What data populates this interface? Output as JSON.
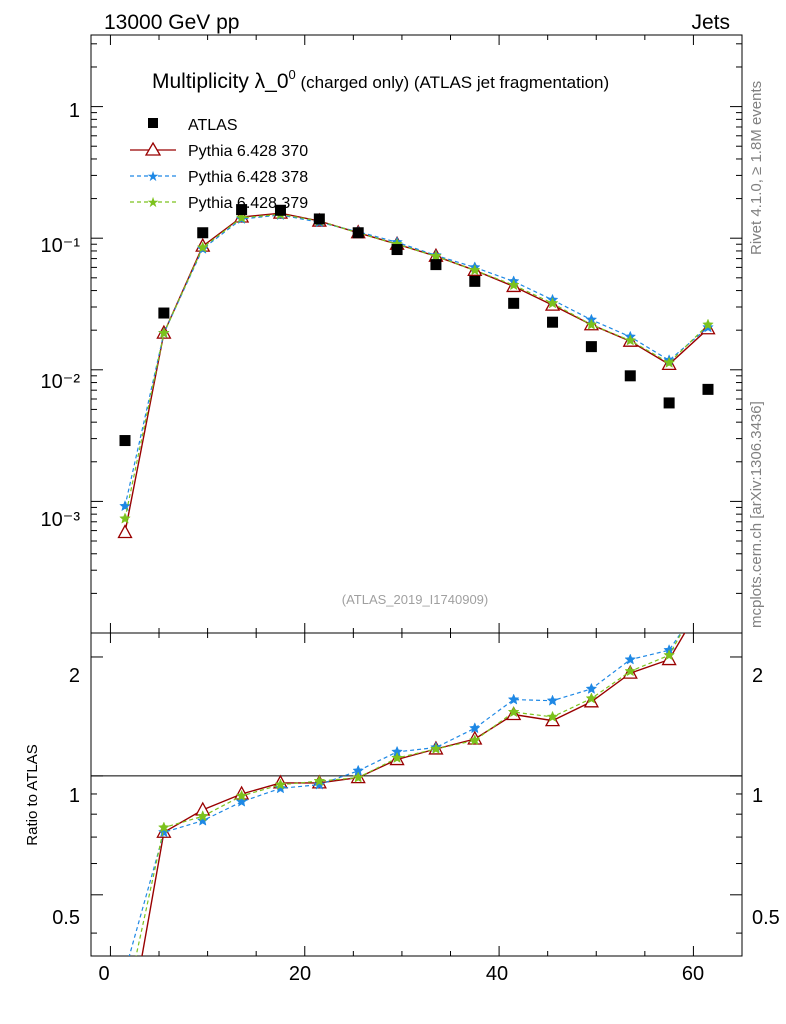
{
  "header": {
    "left": "13000 GeV pp",
    "right": "Jets"
  },
  "side_labels": {
    "rivet": "Rivet 4.1.0, ≥ 1.8M events",
    "mcplots": "mcplots.cern.ch [arXiv:1306.3436]"
  },
  "colors": {
    "atlas": "#000000",
    "p370": "#990000",
    "p378": "#1e88e5",
    "p379": "#7cc21d"
  },
  "chart_data": [
    {
      "type": "scatter",
      "title": "Multiplicity λ_0⁰ (charged only) (ATLAS jet fragmentation)",
      "title_main": "Multiplicity λ_0",
      "title_sup": "0",
      "title_rest": " (charged only) (ATLAS jet fragmentation)",
      "analysis": "(ATLAS_2019_I1740909)",
      "xlim": [
        -2,
        65
      ],
      "ylim": [
        0.0001,
        3.5
      ],
      "yscale": "log",
      "ytick_labels": [
        "10⁻³",
        "10⁻²",
        "10⁻¹",
        "1"
      ],
      "x": [
        1.5,
        5.5,
        9.5,
        13.5,
        17.5,
        21.5,
        25.5,
        29.5,
        33.5,
        37.5,
        41.5,
        45.5,
        49.5,
        53.5,
        57.5,
        61.5
      ],
      "series": [
        {
          "name": "ATLAS",
          "marker": "square",
          "values": [
            0.0029,
            0.027,
            0.11,
            0.165,
            0.163,
            0.14,
            0.11,
            0.082,
            0.063,
            0.047,
            0.032,
            0.023,
            0.015,
            0.009,
            0.0056,
            0.0071
          ]
        },
        {
          "name": "Pythia 6.428 370",
          "marker": "triangle",
          "values": [
            0.00058,
            0.019,
            0.087,
            0.145,
            0.155,
            0.135,
            0.11,
            0.09,
            0.073,
            0.057,
            0.043,
            0.031,
            0.022,
            0.0165,
            0.011,
            0.0205
          ]
        },
        {
          "name": "Pythia 6.428 378",
          "marker": "star",
          "values": [
            0.00092,
            0.019,
            0.083,
            0.14,
            0.15,
            0.132,
            0.112,
            0.093,
            0.074,
            0.06,
            0.047,
            0.034,
            0.024,
            0.0178,
            0.0118,
            0.021
          ]
        },
        {
          "name": "Pythia 6.428 379",
          "marker": "star",
          "values": [
            0.00074,
            0.019,
            0.085,
            0.143,
            0.152,
            0.135,
            0.11,
            0.09,
            0.073,
            0.057,
            0.044,
            0.032,
            0.022,
            0.0167,
            0.0113,
            0.022
          ]
        }
      ]
    },
    {
      "type": "line",
      "ylabel": "Ratio to ATLAS",
      "xlim": [
        -2,
        65
      ],
      "ylim": [
        0.35,
        2.3
      ],
      "yscale": "log",
      "ytick_labels": [
        "0.5",
        "1",
        "2"
      ],
      "xtick_labels": [
        "0",
        "20",
        "40",
        "60"
      ],
      "reference_line": 1,
      "x": [
        1.5,
        5.5,
        9.5,
        13.5,
        17.5,
        21.5,
        25.5,
        29.5,
        33.5,
        37.5,
        41.5,
        45.5,
        49.5,
        53.5,
        57.5,
        61.5
      ],
      "series": [
        {
          "name": "Pythia 6.428 370",
          "values": [
            0.2,
            0.72,
            0.82,
            0.9,
            0.96,
            0.96,
            0.99,
            1.1,
            1.17,
            1.24,
            1.43,
            1.38,
            1.54,
            1.82,
            1.97,
            2.9
          ]
        },
        {
          "name": "Pythia 6.428 378",
          "values": [
            0.32,
            0.72,
            0.77,
            0.86,
            0.93,
            0.95,
            1.03,
            1.15,
            1.18,
            1.32,
            1.56,
            1.55,
            1.66,
            1.97,
            2.08,
            2.9
          ]
        },
        {
          "name": "Pythia 6.428 379",
          "values": [
            0.26,
            0.74,
            0.79,
            0.89,
            0.95,
            0.97,
            0.99,
            1.11,
            1.17,
            1.23,
            1.45,
            1.41,
            1.57,
            1.84,
            2.02,
            3.05
          ]
        }
      ]
    }
  ]
}
